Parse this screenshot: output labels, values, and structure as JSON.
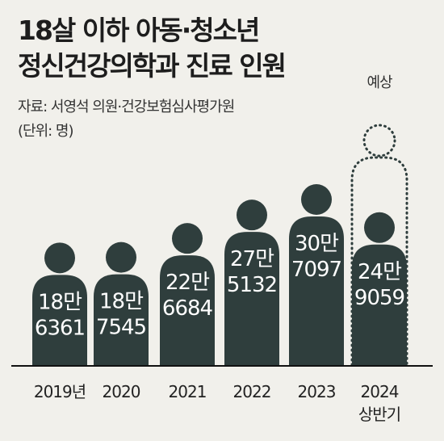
{
  "title_lines": [
    "18살 이하 아동·청소년",
    "정신건강의학과 진료 인원"
  ],
  "source": "자료: 서영석 의원·건강보험심사평가원",
  "unit": "(단위: 명)",
  "colors": {
    "background": "#f1f0eb",
    "figure": "#2f3e3d",
    "label": "#ffffff",
    "baseline": "#111111",
    "projection_outline": "#2f3e3d"
  },
  "chart_data": {
    "type": "bar",
    "style": "pictogram",
    "categories": [
      "2019년",
      "2020",
      "2021",
      "2022",
      "2023",
      "2024"
    ],
    "category_sublabels": [
      "",
      "",
      "",
      "",
      "",
      "상반기"
    ],
    "values": [
      186361,
      187545,
      226684,
      275132,
      307097,
      249059
    ],
    "value_labels": [
      [
        "18만",
        "6361"
      ],
      [
        "18만",
        "7545"
      ],
      [
        "22만",
        "6684"
      ],
      [
        "27만",
        "5132"
      ],
      [
        "30만",
        "7097"
      ],
      [
        "24만",
        "9059"
      ]
    ],
    "projection": {
      "category": "2024",
      "label": "예상"
    },
    "grid": false,
    "legend": "none"
  }
}
